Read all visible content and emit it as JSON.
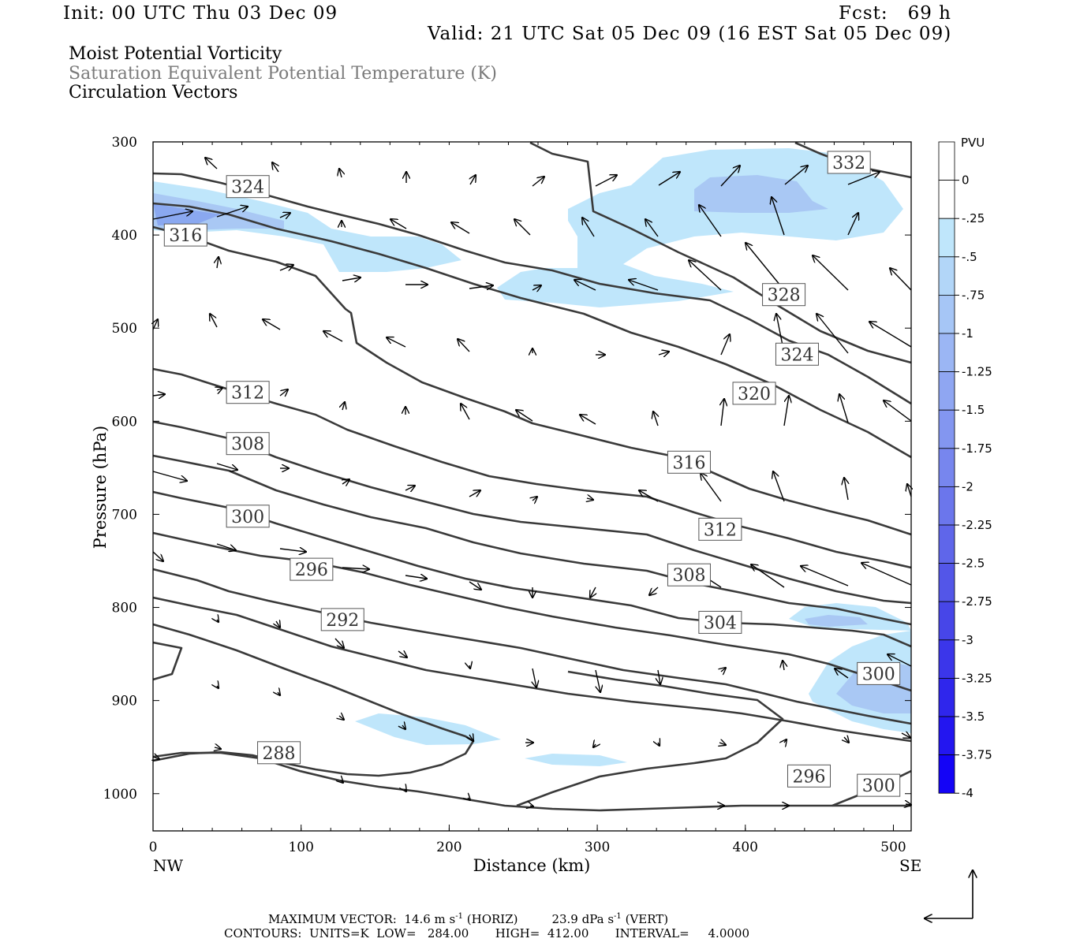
{
  "header": {
    "init": "Init: 00 UTC Thu 03 Dec 09",
    "fcst": "Fcst:   69 h",
    "valid": "Valid: 21 UTC Sat 05 Dec 09 (16 EST Sat 05 Dec 09)",
    "field1": "Moist Potential Vorticity",
    "field2": "Saturation Equivalent Potential Temperature (K)",
    "field3": "Circulation Vectors"
  },
  "footer": {
    "max_vector_label": "MAXIMUM VECTOR:",
    "max_vector_horiz": "14.6 m s",
    "horiz_tag": "(HORIZ)",
    "max_vector_vert": "23.9 dPa s",
    "vert_tag": "(VERT)",
    "exp": "-1",
    "contours": "CONTOURS:  UNITS=K  LOW=   284.00       HIGH=  412.00       INTERVAL=     4.0000"
  },
  "colors": {
    "contour": "#3a3a3a",
    "pv_light": "#bfe6fb",
    "pv_mid": "#a9c8f4",
    "pv_dark": "#8aa8f0"
  },
  "chart_data": {
    "type": "cross-section",
    "xlabel": "Distance (km)",
    "ylabel": "Pressure (hPa)",
    "xlim": [
      0,
      512
    ],
    "ylim": [
      1040,
      300
    ],
    "x_ticks": [
      "0",
      "100",
      "200",
      "300",
      "400",
      "500"
    ],
    "y_ticks": [
      "300",
      "400",
      "500",
      "600",
      "700",
      "800",
      "900",
      "1000"
    ],
    "x_end_labels": {
      "left": "NW",
      "right": "SE"
    },
    "colorbar": {
      "unit": "PVU",
      "ticks": [
        "0",
        "-.25",
        "-.5",
        "-.75",
        "-1",
        "-1.25",
        "-1.5",
        "-1.75",
        "-2",
        "-2.25",
        "-2.5",
        "-2.75",
        "-3",
        "-3.25",
        "-3.5",
        "-3.75",
        "-4"
      ],
      "colors": [
        "#ffffff",
        "#ffffff",
        "#bfe6fb",
        "#b2d6f8",
        "#a6c6f6",
        "#9bb6f4",
        "#8fa6f2",
        "#8396f0",
        "#7786ee",
        "#6b76ec",
        "#5f66ea",
        "#5356e8",
        "#4746e8",
        "#3b36ea",
        "#2f26ec",
        "#2316f0",
        "#1404f6"
      ]
    },
    "contour_labels": [
      {
        "text": "324",
        "x": 64,
        "p": 348
      },
      {
        "text": "316",
        "x": 22,
        "p": 400
      },
      {
        "text": "332",
        "x": 470,
        "p": 322
      },
      {
        "text": "328",
        "x": 426,
        "p": 464
      },
      {
        "text": "324",
        "x": 435,
        "p": 528
      },
      {
        "text": "320",
        "x": 406,
        "p": 570
      },
      {
        "text": "316",
        "x": 362,
        "p": 644
      },
      {
        "text": "312",
        "x": 64,
        "p": 569
      },
      {
        "text": "308",
        "x": 64,
        "p": 624
      },
      {
        "text": "312",
        "x": 383,
        "p": 716
      },
      {
        "text": "300",
        "x": 64,
        "p": 702
      },
      {
        "text": "296",
        "x": 107,
        "p": 759
      },
      {
        "text": "308",
        "x": 362,
        "p": 765
      },
      {
        "text": "292",
        "x": 128,
        "p": 813
      },
      {
        "text": "304",
        "x": 383,
        "p": 816
      },
      {
        "text": "288",
        "x": 85,
        "p": 956
      },
      {
        "text": "296",
        "x": 443,
        "p": 981
      },
      {
        "text": "300",
        "x": 490,
        "p": 871
      },
      {
        "text": "300",
        "x": 490,
        "p": 991
      }
    ],
    "max_vector_horiz": 14.6,
    "max_vector_vert": 23.9,
    "contour_low": 284.0,
    "contour_high": 412.0,
    "contour_interval": 4.0
  }
}
